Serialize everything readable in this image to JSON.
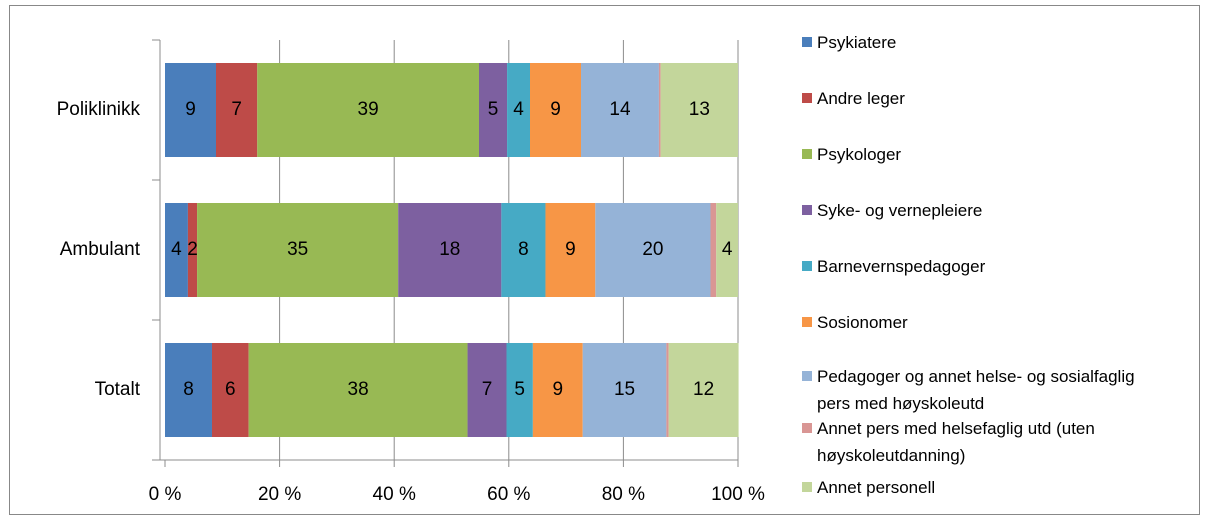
{
  "chart_data": {
    "type": "stacked-bar-horizontal",
    "categories": [
      "Poliklinikk",
      "Ambulant",
      "Totalt"
    ],
    "series": [
      {
        "name": "Psykiatere",
        "color": "#4a7ebb",
        "values": [
          8.9,
          4.0,
          8.2
        ],
        "value_labels": [
          "9",
          "4",
          "8"
        ]
      },
      {
        "name": "Andre leger",
        "color": "#be4b48",
        "values": [
          7.2,
          1.6,
          6.4
        ],
        "value_labels": [
          "7",
          "2",
          "6"
        ]
      },
      {
        "name": "Psykologer",
        "color": "#98b954",
        "values": [
          38.7,
          35.1,
          38.2
        ],
        "value_labels": [
          "39",
          "35",
          "38"
        ]
      },
      {
        "name": "Syke- og vernepleiere",
        "color": "#7d60a0",
        "values": [
          4.9,
          18.0,
          6.8
        ],
        "value_labels": [
          "5",
          "18",
          "7"
        ]
      },
      {
        "name": "Barnevernspedagoger",
        "color": "#46aac5",
        "values": [
          4.0,
          7.7,
          4.6
        ],
        "value_labels": [
          "4",
          "8",
          "5"
        ]
      },
      {
        "name": "Sosionomer",
        "color": "#f79646",
        "values": [
          8.9,
          8.7,
          8.7
        ],
        "value_labels": [
          "9",
          "9",
          "9"
        ]
      },
      {
        "name": "Pedagoger og annet helse- og sosialfaglig pers med høyskoleutd",
        "color": "#95b3d7",
        "values": [
          13.6,
          20.1,
          14.6
        ],
        "value_labels": [
          "14",
          "20",
          "15"
        ]
      },
      {
        "name": "Annet pers med helsefaglig utd (uten høyskoleutdanning)",
        "color": "#d99694",
        "values": [
          0.3,
          1.0,
          0.4
        ],
        "value_labels": [
          null,
          null,
          null
        ]
      },
      {
        "name": "Annet personell",
        "color": "#c3d69b",
        "values": [
          13.5,
          3.8,
          12.2
        ],
        "value_labels": [
          "13",
          "4",
          "12"
        ]
      }
    ],
    "xlim": [
      0,
      100
    ],
    "xticks": [
      {
        "value": 0,
        "label": "0 %"
      },
      {
        "value": 20,
        "label": "20 %"
      },
      {
        "value": 40,
        "label": "40 %"
      },
      {
        "value": 60,
        "label": "60 %"
      },
      {
        "value": 80,
        "label": "80 %"
      },
      {
        "value": 100,
        "label": "100 %"
      }
    ],
    "grid": true,
    "legend": "right"
  }
}
